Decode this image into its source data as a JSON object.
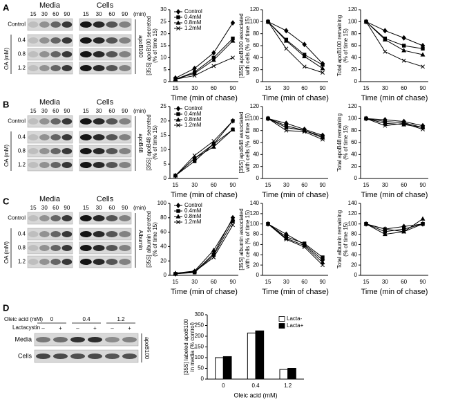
{
  "figure": {
    "panels": [
      {
        "letter": "A",
        "media": "Media",
        "cells": "Cells",
        "times": [
          "15",
          "30",
          "60",
          "90"
        ],
        "unit": "(min)",
        "rows": [
          "Control",
          "0.4",
          "0.8",
          "1.2"
        ],
        "treatment": "OA (mM)",
        "protein": "apoB100"
      },
      {
        "letter": "B",
        "media": "Media",
        "cells": "Cells",
        "times": [
          "15",
          "30",
          "60",
          "90"
        ],
        "unit": "(min)",
        "rows": [
          "Control",
          "0.4",
          "0.8",
          "1.2"
        ],
        "treatment": "OA (mM)",
        "protein": "apoB48"
      },
      {
        "letter": "C",
        "media": "Media",
        "cells": "Cells",
        "times": [
          "15",
          "30",
          "60",
          "90"
        ],
        "unit": "(min)",
        "rows": [
          "Control",
          "0.4",
          "0.8",
          "1.2"
        ],
        "treatment": "OA (mM)",
        "protein": "Albumin"
      }
    ],
    "panel_d": {
      "letter": "D",
      "oleic_label": "Oleic acid (mM)",
      "doses": [
        "0",
        "0.4",
        "1.2"
      ],
      "lacta_label": "Lactacystin",
      "signs": [
        "–",
        "+",
        "–",
        "+",
        "–",
        "+"
      ],
      "rows": [
        "Media",
        "Cells"
      ],
      "protein": "apoB100"
    }
  },
  "chart_data": [
    {
      "type": "line",
      "ylabel": [
        "[35S] apoB100 secreted",
        "(% of time 15)"
      ],
      "xlabel": "Time (min of chase)",
      "categories": [
        "15",
        "30",
        "60",
        "90"
      ],
      "ylim": [
        0,
        30
      ],
      "yticks": [
        0,
        5,
        10,
        15,
        20,
        25,
        30
      ],
      "legend": "upper left",
      "series": [
        {
          "name": "Control",
          "color": "#000000",
          "marker": "diamond",
          "values": [
            1.5,
            5.5,
            12,
            24.5
          ]
        },
        {
          "name": "0.4mM",
          "color": "#000000",
          "marker": "square",
          "values": [
            1,
            4,
            10,
            18
          ]
        },
        {
          "name": "0.8mM",
          "color": "#000000",
          "marker": "triangle",
          "values": [
            1,
            3.5,
            9,
            17
          ]
        },
        {
          "name": "1.2mM",
          "color": "#000000",
          "marker": "x",
          "values": [
            1,
            2.5,
            6.5,
            10
          ]
        }
      ]
    },
    {
      "type": "line",
      "ylabel": [
        "[35S] apoB100 associated",
        "with cells (% of time 15)"
      ],
      "xlabel": "Time (min of chase)",
      "categories": [
        "15",
        "30",
        "60",
        "90"
      ],
      "ylim": [
        0,
        120
      ],
      "yticks": [
        0,
        20,
        40,
        60,
        80,
        100,
        120
      ],
      "series": [
        {
          "name": "Control",
          "color": "#000000",
          "marker": "diamond",
          "values": [
            100,
            85,
            62,
            30
          ]
        },
        {
          "name": "0.4mM",
          "color": "#000000",
          "marker": "square",
          "values": [
            100,
            70,
            45,
            28
          ]
        },
        {
          "name": "0.8mM",
          "color": "#000000",
          "marker": "triangle",
          "values": [
            100,
            68,
            42,
            22
          ]
        },
        {
          "name": "1.2mM",
          "color": "#000000",
          "marker": "x",
          "values": [
            100,
            55,
            25,
            15
          ]
        }
      ]
    },
    {
      "type": "line",
      "ylabel": [
        "Total apoB100 remaining",
        "(% of time 15)"
      ],
      "xlabel": "Time (min of chase)",
      "categories": [
        "15",
        "30",
        "60",
        "90"
      ],
      "ylim": [
        0,
        120
      ],
      "yticks": [
        0,
        20,
        40,
        60,
        80,
        100,
        120
      ],
      "series": [
        {
          "name": "Control",
          "color": "#000000",
          "marker": "diamond",
          "values": [
            100,
            85,
            73,
            60
          ]
        },
        {
          "name": "0.4mM",
          "color": "#000000",
          "marker": "square",
          "values": [
            100,
            72,
            60,
            55
          ]
        },
        {
          "name": "0.8mM",
          "color": "#000000",
          "marker": "triangle",
          "values": [
            100,
            70,
            52,
            45
          ]
        },
        {
          "name": "1.2mM",
          "color": "#000000",
          "marker": "x",
          "values": [
            100,
            50,
            35,
            25
          ]
        }
      ]
    },
    {
      "type": "line",
      "ylabel": [
        "[35S] apoB48 secreted",
        "(% of time 15)"
      ],
      "xlabel": "Time (min of chase)",
      "categories": [
        "15",
        "30",
        "60",
        "90"
      ],
      "ylim": [
        0,
        25
      ],
      "yticks": [
        0,
        5,
        10,
        15,
        20,
        25
      ],
      "legend": "upper left",
      "series": [
        {
          "name": "Control",
          "color": "#000000",
          "marker": "diamond",
          "values": [
            1,
            7,
            12,
            20
          ]
        },
        {
          "name": "0.4mM",
          "color": "#000000",
          "marker": "square",
          "values": [
            1,
            6,
            12,
            17
          ]
        },
        {
          "name": "0.8mM",
          "color": "#000000",
          "marker": "triangle",
          "values": [
            1,
            7,
            11,
            17
          ]
        },
        {
          "name": "1.2mM",
          "color": "#000000",
          "marker": "x",
          "values": [
            1,
            8,
            13,
            20
          ]
        }
      ]
    },
    {
      "type": "line",
      "ylabel": [
        "[35S] apoB48 associated",
        "with cells (% of time 15)"
      ],
      "xlabel": "Time (min of chase)",
      "categories": [
        "15",
        "30",
        "60",
        "90"
      ],
      "ylim": [
        0,
        120
      ],
      "yticks": [
        0,
        20,
        40,
        60,
        80,
        100,
        120
      ],
      "series": [
        {
          "name": "Control",
          "color": "#000000",
          "marker": "diamond",
          "values": [
            100,
            92,
            82,
            72
          ]
        },
        {
          "name": "0.4mM",
          "color": "#000000",
          "marker": "square",
          "values": [
            100,
            88,
            80,
            70
          ]
        },
        {
          "name": "0.8mM",
          "color": "#000000",
          "marker": "triangle",
          "values": [
            100,
            85,
            80,
            68
          ]
        },
        {
          "name": "1.2mM",
          "color": "#000000",
          "marker": "x",
          "values": [
            100,
            80,
            78,
            65
          ]
        }
      ]
    },
    {
      "type": "line",
      "ylabel": [
        "Total apoB48 remaining",
        "(% of time 15)"
      ],
      "xlabel": "Time (min of chase)",
      "categories": [
        "15",
        "30",
        "60",
        "90"
      ],
      "ylim": [
        0,
        120
      ],
      "yticks": [
        0,
        20,
        40,
        60,
        80,
        100,
        120
      ],
      "series": [
        {
          "name": "Control",
          "color": "#000000",
          "marker": "diamond",
          "values": [
            100,
            98,
            95,
            88
          ]
        },
        {
          "name": "0.4mM",
          "color": "#000000",
          "marker": "square",
          "values": [
            100,
            95,
            93,
            85
          ]
        },
        {
          "name": "0.8mM",
          "color": "#000000",
          "marker": "triangle",
          "values": [
            100,
            92,
            90,
            85
          ]
        },
        {
          "name": "1.2mM",
          "color": "#000000",
          "marker": "x",
          "values": [
            100,
            88,
            92,
            82
          ]
        }
      ]
    },
    {
      "type": "line",
      "ylabel": [
        "[35S] albumin secreted",
        "(% of time 15)"
      ],
      "xlabel": "Time (min of chase)",
      "categories": [
        "15",
        "30",
        "60",
        "90"
      ],
      "ylim": [
        0,
        100
      ],
      "yticks": [
        0,
        20,
        40,
        60,
        80,
        100
      ],
      "legend": "upper left",
      "series": [
        {
          "name": "Control",
          "color": "#000000",
          "marker": "diamond",
          "values": [
            2,
            5,
            30,
            80
          ]
        },
        {
          "name": "0.4mM",
          "color": "#000000",
          "marker": "square",
          "values": [
            2,
            4,
            28,
            75
          ]
        },
        {
          "name": "0.8mM",
          "color": "#000000",
          "marker": "triangle",
          "values": [
            3,
            6,
            35,
            78
          ]
        },
        {
          "name": "1.2mM",
          "color": "#000000",
          "marker": "x",
          "values": [
            2,
            5,
            25,
            70
          ]
        }
      ]
    },
    {
      "type": "line",
      "ylabel": [
        "[35S] albumin associated",
        "with cells (% of time 15)"
      ],
      "xlabel": "Time (min of chase)",
      "categories": [
        "15",
        "30",
        "60",
        "90"
      ],
      "ylim": [
        0,
        140
      ],
      "yticks": [
        0,
        20,
        40,
        60,
        80,
        100,
        120,
        140
      ],
      "series": [
        {
          "name": "Control",
          "color": "#000000",
          "marker": "diamond",
          "values": [
            100,
            80,
            60,
            30
          ]
        },
        {
          "name": "0.4mM",
          "color": "#000000",
          "marker": "square",
          "values": [
            100,
            75,
            62,
            35
          ]
        },
        {
          "name": "0.8mM",
          "color": "#000000",
          "marker": "triangle",
          "values": [
            100,
            72,
            58,
            25
          ]
        },
        {
          "name": "1.2mM",
          "color": "#000000",
          "marker": "x",
          "values": [
            100,
            70,
            55,
            20
          ]
        }
      ]
    },
    {
      "type": "line",
      "ylabel": [
        "Total albumin remaining",
        "(% of time 15)"
      ],
      "xlabel": "Time (min of chase)",
      "categories": [
        "15",
        "30",
        "60",
        "90"
      ],
      "ylim": [
        0,
        140
      ],
      "yticks": [
        0,
        20,
        40,
        60,
        80,
        100,
        120,
        140
      ],
      "series": [
        {
          "name": "Control",
          "color": "#000000",
          "marker": "diamond",
          "values": [
            100,
            90,
            95,
            100
          ]
        },
        {
          "name": "0.4mM",
          "color": "#000000",
          "marker": "square",
          "values": [
            100,
            85,
            90,
            100
          ]
        },
        {
          "name": "0.8mM",
          "color": "#000000",
          "marker": "triangle",
          "values": [
            100,
            80,
            85,
            110
          ]
        },
        {
          "name": "1.2mM",
          "color": "#000000",
          "marker": "x",
          "values": [
            100,
            90,
            85,
            100
          ]
        }
      ]
    },
    {
      "type": "bar",
      "ylabel": [
        "[35S] labeled apoB100",
        "in media (% control)"
      ],
      "xlabel": "Oleic acid (mM)",
      "categories": [
        "0",
        "0.4",
        "1.2"
      ],
      "ylim": [
        0,
        300
      ],
      "yticks": [
        0,
        50,
        100,
        150,
        200,
        250,
        300
      ],
      "legend": "upper right",
      "series": [
        {
          "name": "Lacta-",
          "color": "#ffffff",
          "values": [
            100,
            215,
            45
          ]
        },
        {
          "name": "Lacta+",
          "color": "#000000",
          "values": [
            105,
            225,
            50
          ]
        }
      ]
    }
  ]
}
